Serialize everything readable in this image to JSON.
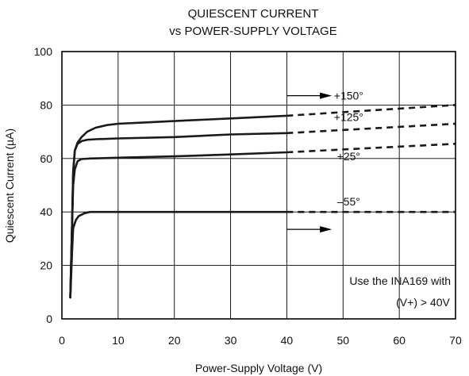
{
  "chart_data": {
    "type": "line",
    "title": [
      "QUIESCENT CURRENT",
      "vs POWER-SUPPLY VOLTAGE"
    ],
    "xlabel": "Power-Supply Voltage (V)",
    "ylabel": "Quiescent Current (µA)",
    "xlim": [
      0,
      70
    ],
    "ylim": [
      0,
      100
    ],
    "x_ticks": [
      0,
      10,
      20,
      30,
      40,
      50,
      60,
      70
    ],
    "y_ticks": [
      0,
      20,
      40,
      60,
      80,
      100
    ],
    "grid": true,
    "legend": "none",
    "series": [
      {
        "name": "+150°",
        "solid": [
          [
            1.5,
            8
          ],
          [
            1.8,
            35
          ],
          [
            2.0,
            55
          ],
          [
            2.3,
            63
          ],
          [
            2.8,
            66
          ],
          [
            3.5,
            68
          ],
          [
            4.5,
            70
          ],
          [
            6,
            71.5
          ],
          [
            8,
            72.5
          ],
          [
            10,
            73
          ],
          [
            15,
            73.5
          ],
          [
            20,
            74
          ],
          [
            30,
            75
          ],
          [
            40,
            76
          ]
        ],
        "dashed": [
          [
            40,
            76
          ],
          [
            70,
            80
          ]
        ]
      },
      {
        "name": "+125°",
        "solid": [
          [
            1.5,
            8
          ],
          [
            1.8,
            35
          ],
          [
            2.0,
            55
          ],
          [
            2.3,
            63
          ],
          [
            2.8,
            65.5
          ],
          [
            3.5,
            66.5
          ],
          [
            4.5,
            67
          ],
          [
            6,
            67.2
          ],
          [
            10,
            67.5
          ],
          [
            20,
            68
          ],
          [
            30,
            69
          ],
          [
            40,
            69.5
          ]
        ],
        "dashed": [
          [
            40,
            69.5
          ],
          [
            70,
            73
          ]
        ]
      },
      {
        "name": "+25°",
        "solid": [
          [
            1.5,
            8
          ],
          [
            1.8,
            35
          ],
          [
            2.0,
            50
          ],
          [
            2.3,
            56
          ],
          [
            2.8,
            59
          ],
          [
            3.5,
            59.8
          ],
          [
            5,
            60
          ],
          [
            10,
            60.3
          ],
          [
            20,
            60.8
          ],
          [
            30,
            61.5
          ],
          [
            40,
            62.3
          ]
        ],
        "dashed": [
          [
            40,
            62.3
          ],
          [
            70,
            65.5
          ]
        ]
      },
      {
        "name": "–55°",
        "solid": [
          [
            1.5,
            8
          ],
          [
            1.8,
            25
          ],
          [
            2.0,
            34
          ],
          [
            2.5,
            37
          ],
          [
            3,
            38.5
          ],
          [
            4,
            39.5
          ],
          [
            5,
            40
          ],
          [
            10,
            40
          ],
          [
            20,
            40
          ],
          [
            30,
            40
          ],
          [
            40,
            40
          ]
        ],
        "dashed": [
          [
            40,
            40
          ],
          [
            70,
            40
          ]
        ]
      }
    ],
    "series_labels": [
      {
        "series": 0,
        "text": "+150°",
        "x": 51,
        "y": 82
      },
      {
        "series": 1,
        "text": "+125°",
        "x": 51,
        "y": 74
      },
      {
        "series": 2,
        "text": "+25°",
        "x": 51,
        "y": 59.3
      },
      {
        "series": 3,
        "text": "–55°",
        "x": 51,
        "y": 42.5
      }
    ],
    "annotation": [
      "Use the INA169 with",
      "(V+) > 40V"
    ],
    "arrows": [
      {
        "from": [
          40,
          83.5
        ],
        "to": [
          48,
          83.5
        ]
      },
      {
        "from": [
          40,
          33.5
        ],
        "to": [
          48,
          33.5
        ]
      }
    ]
  }
}
